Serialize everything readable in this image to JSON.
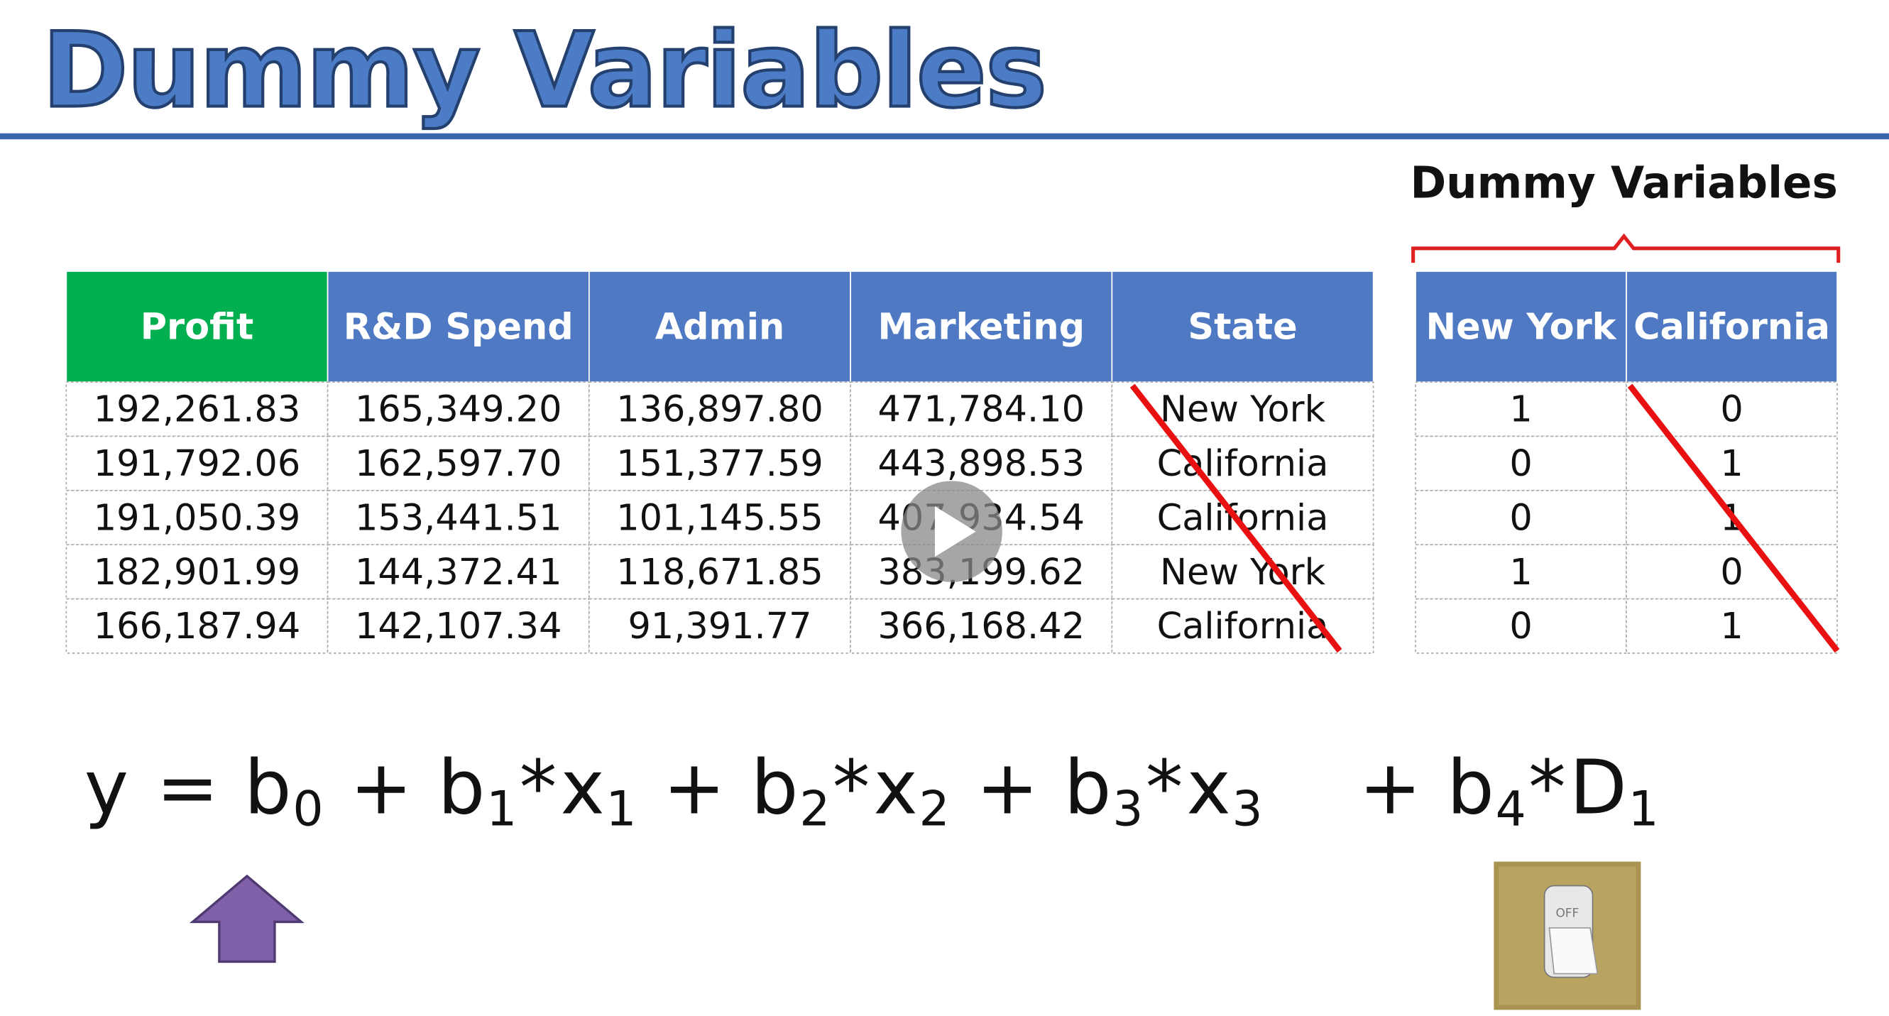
{
  "title": "Dummy Variables",
  "table": {
    "headers": [
      "Profit",
      "R&D Spend",
      "Admin",
      "Marketing",
      "State"
    ],
    "rows": [
      [
        "192,261.83",
        "165,349.20",
        "136,897.80",
        "471,784.10",
        "New York"
      ],
      [
        "191,792.06",
        "162,597.70",
        "151,377.59",
        "443,898.53",
        "California"
      ],
      [
        "191,050.39",
        "153,441.51",
        "101,145.55",
        "407,934.54",
        "California"
      ],
      [
        "182,901.99",
        "144,372.41",
        "118,671.85",
        "383,199.62",
        "New York"
      ],
      [
        "166,187.94",
        "142,107.34",
        "91,391.77",
        "366,168.42",
        "California"
      ]
    ]
  },
  "dummy_table": {
    "label": "Dummy Variables",
    "headers": [
      "New York",
      "California"
    ],
    "rows": [
      [
        "1",
        "0"
      ],
      [
        "0",
        "1"
      ],
      [
        "0",
        "1"
      ],
      [
        "1",
        "0"
      ],
      [
        "0",
        "1"
      ]
    ]
  },
  "equation": {
    "main": [
      {
        "text": "y"
      },
      {
        "text": "="
      },
      {
        "text": "b",
        "sub": "0"
      },
      {
        "text": "+"
      },
      {
        "text": "b",
        "sub": "1"
      },
      {
        "text": "*"
      },
      {
        "text": "x",
        "sub": "1"
      },
      {
        "text": "+"
      },
      {
        "text": "b",
        "sub": "2"
      },
      {
        "text": "*"
      },
      {
        "text": "x",
        "sub": "2"
      },
      {
        "text": "+"
      },
      {
        "text": "b",
        "sub": "3"
      },
      {
        "text": "*"
      },
      {
        "text": "x",
        "sub": "3"
      }
    ],
    "dummy_term": [
      {
        "text": "+"
      },
      {
        "text": "b",
        "sub": "4"
      },
      {
        "text": "*"
      },
      {
        "text": "D",
        "sub": "1"
      }
    ]
  },
  "switch_label": "OFF"
}
